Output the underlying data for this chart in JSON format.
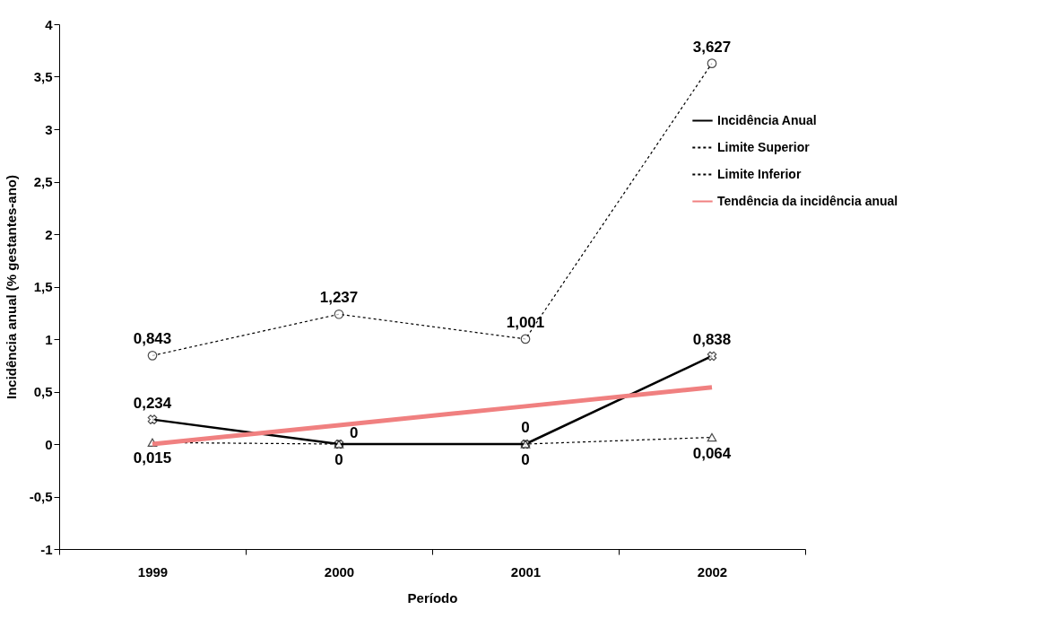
{
  "chart_data": {
    "type": "line",
    "xlabel": "Período",
    "ylabel": "Incidência anual (% gestantes-ano)",
    "categories": [
      "1999",
      "2000",
      "2001",
      "2002"
    ],
    "series": [
      {
        "name": "Incidência Anual",
        "color": "#000000",
        "marker": "cross",
        "line_style": "solid",
        "values": [
          0.234,
          0,
          0,
          0.838
        ],
        "value_labels": [
          "0,234",
          "0",
          "0",
          "0,838"
        ]
      },
      {
        "name": "Limite Superior",
        "color": "#000000",
        "marker": "circle",
        "line_style": "dashed",
        "values": [
          0.843,
          1.237,
          1.001,
          3.627
        ],
        "value_labels": [
          "0,843",
          "1,237",
          "1,001",
          "3,627"
        ]
      },
      {
        "name": "Limite Inferior",
        "color": "#000000",
        "marker": "triangle",
        "line_style": "dashed",
        "values": [
          0.015,
          0,
          0,
          0.064
        ],
        "value_labels": [
          "0,015",
          "0",
          "0",
          "0,064"
        ]
      },
      {
        "name": "Tendência da incidência anual",
        "type": "line",
        "color": "#f08080",
        "marker": "none",
        "line_style": "solid",
        "values": [
          0,
          0.18,
          0.36,
          0.54
        ]
      }
    ],
    "ylim": [
      -1,
      4
    ],
    "yticks": [
      -1,
      {
        "value": -0.5,
        "label": "-0,5"
      },
      0,
      {
        "value": 0.5,
        "label": "0,5"
      },
      1,
      {
        "value": 1.5,
        "label": "1,5"
      },
      2,
      {
        "value": 2.5,
        "label": "2,5"
      },
      3,
      {
        "value": 3.5,
        "label": "3,5"
      },
      4
    ],
    "grid": false,
    "legend": "right"
  }
}
